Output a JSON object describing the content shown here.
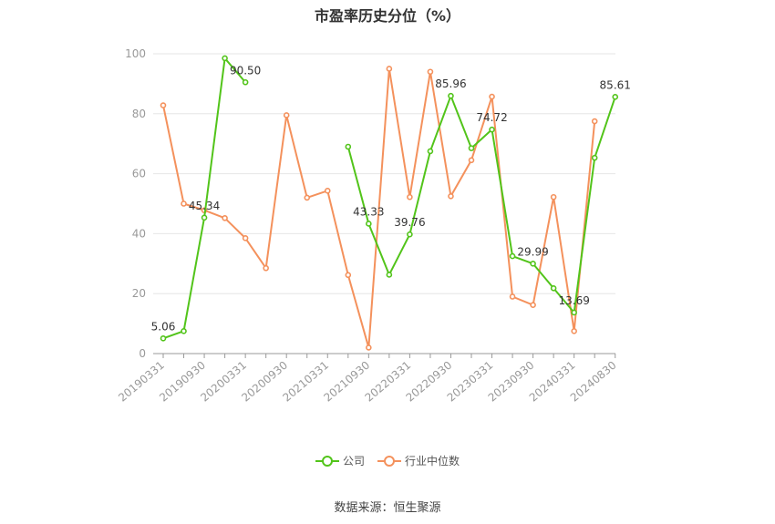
{
  "chart_data": {
    "type": "line",
    "title": "市盈率历史分位（%）",
    "x": [
      "20190331",
      "20190630",
      "20190930",
      "20191231",
      "20200331",
      "20200630",
      "20200930",
      "20201231",
      "20210331",
      "20210630",
      "20210930",
      "20211231",
      "20220331",
      "20220630",
      "20220930",
      "20221231",
      "20230331",
      "20230630",
      "20230930",
      "20231231",
      "20240331",
      "20240630",
      "20240830"
    ],
    "xtick_labels": [
      "20190331",
      "20190930",
      "20200331",
      "20200930",
      "20210331",
      "20210930",
      "20220331",
      "20220930",
      "20230331",
      "20230930",
      "20240331",
      "20240830"
    ],
    "ylim": [
      0,
      100
    ],
    "yticks": [
      0,
      20,
      40,
      60,
      80,
      100
    ],
    "grid": true,
    "legend_position": "bottom",
    "series": [
      {
        "name": "公司",
        "color": "#52c41a",
        "values": [
          5.06,
          7.5,
          45.34,
          98.5,
          90.5,
          null,
          null,
          null,
          null,
          69.0,
          43.33,
          26.3,
          39.76,
          67.5,
          85.96,
          68.5,
          74.72,
          32.5,
          29.99,
          21.8,
          13.69,
          65.3,
          85.61
        ],
        "labels": {
          "0": "5.06",
          "2": "45.34",
          "4": "90.50",
          "10": "43.33",
          "12": "39.76",
          "14": "85.96",
          "16": "74.72",
          "18": "29.99",
          "20": "13.69",
          "22": "85.61"
        }
      },
      {
        "name": "行业中位数",
        "color": "#f4915c",
        "values": [
          82.8,
          50.0,
          47.8,
          45.2,
          38.5,
          28.5,
          79.5,
          52.0,
          54.3,
          26.2,
          2.0,
          95.0,
          52.2,
          94.0,
          52.5,
          64.5,
          85.7,
          19.0,
          16.2,
          52.2,
          7.5,
          77.5,
          null
        ]
      }
    ]
  },
  "legend": {
    "company": "公司",
    "industry": "行业中位数"
  },
  "source": "数据来源：恒生聚源"
}
